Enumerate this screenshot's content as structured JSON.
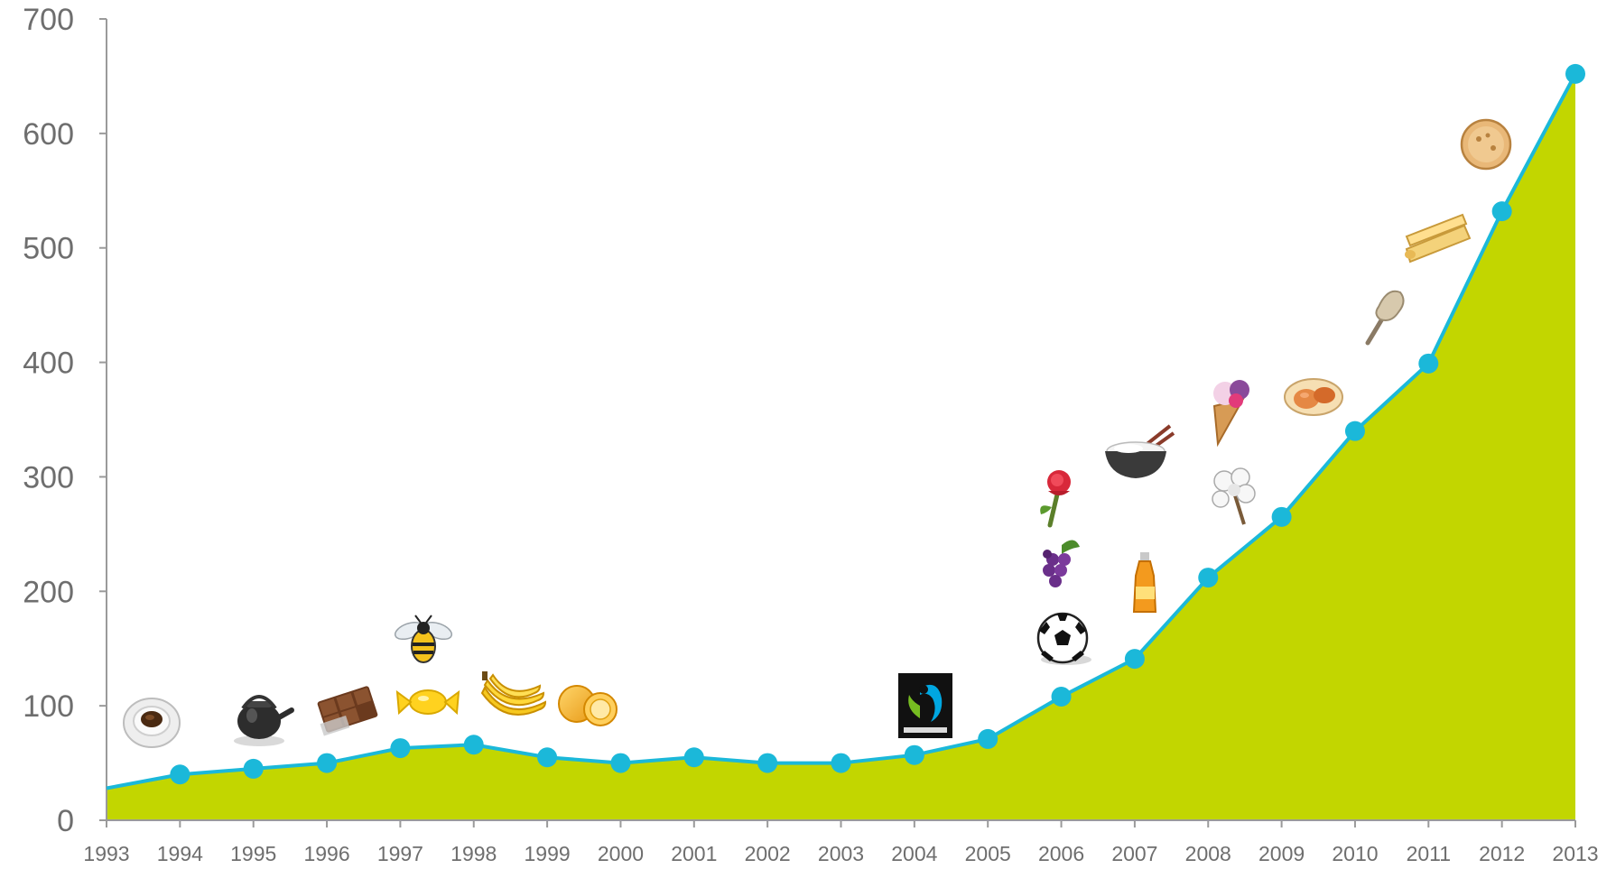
{
  "chart_data": {
    "type": "area",
    "title": "",
    "xlabel": "",
    "ylabel": "",
    "x": [
      "1993",
      "1994",
      "1995",
      "1996",
      "1997",
      "1998",
      "1999",
      "2000",
      "2001",
      "2002",
      "2003",
      "2004",
      "2005",
      "2006",
      "2007",
      "2008",
      "2009",
      "2010",
      "2011",
      "2012",
      "2013"
    ],
    "values": [
      28,
      40,
      45,
      50,
      63,
      66,
      55,
      50,
      55,
      50,
      50,
      57,
      71,
      108,
      141,
      212,
      265,
      340,
      399,
      532,
      652
    ],
    "ylim": [
      0,
      700
    ],
    "yticks": [
      "0",
      "100",
      "200",
      "300",
      "400",
      "500",
      "600",
      "700"
    ],
    "grid": false,
    "colors": {
      "area": "#c2d600",
      "line": "#1bb8d9",
      "marker": "#1bb8d9",
      "axis": "#9a9a9a",
      "text": "#6e6e6e"
    },
    "annotations": [
      {
        "icon": "coffee-cup-icon",
        "year": "1993"
      },
      {
        "icon": "teapot-icon",
        "year": "1995"
      },
      {
        "icon": "chocolate-bar-icon",
        "year": "1996"
      },
      {
        "icon": "candy-icon",
        "year": "1997"
      },
      {
        "icon": "bee-icon",
        "year": "1997"
      },
      {
        "icon": "bananas-icon",
        "year": "1998"
      },
      {
        "icon": "orange-icon",
        "year": "1999"
      },
      {
        "icon": "fairtrade-logo-icon",
        "year": "2004"
      },
      {
        "icon": "football-icon",
        "year": "2006"
      },
      {
        "icon": "grapes-icon",
        "year": "2006"
      },
      {
        "icon": "rose-icon",
        "year": "2006"
      },
      {
        "icon": "juice-bottle-icon",
        "year": "2007"
      },
      {
        "icon": "rice-bowl-icon",
        "year": "2007"
      },
      {
        "icon": "cotton-icon",
        "year": "2008"
      },
      {
        "icon": "ice-cream-icon",
        "year": "2008"
      },
      {
        "icon": "dried-fruit-icon",
        "year": "2009"
      },
      {
        "icon": "gold-nugget-icon",
        "year": "2010"
      },
      {
        "icon": "cane-sugar-icon",
        "year": "2011"
      },
      {
        "icon": "cookie-icon",
        "year": "2012"
      }
    ]
  }
}
